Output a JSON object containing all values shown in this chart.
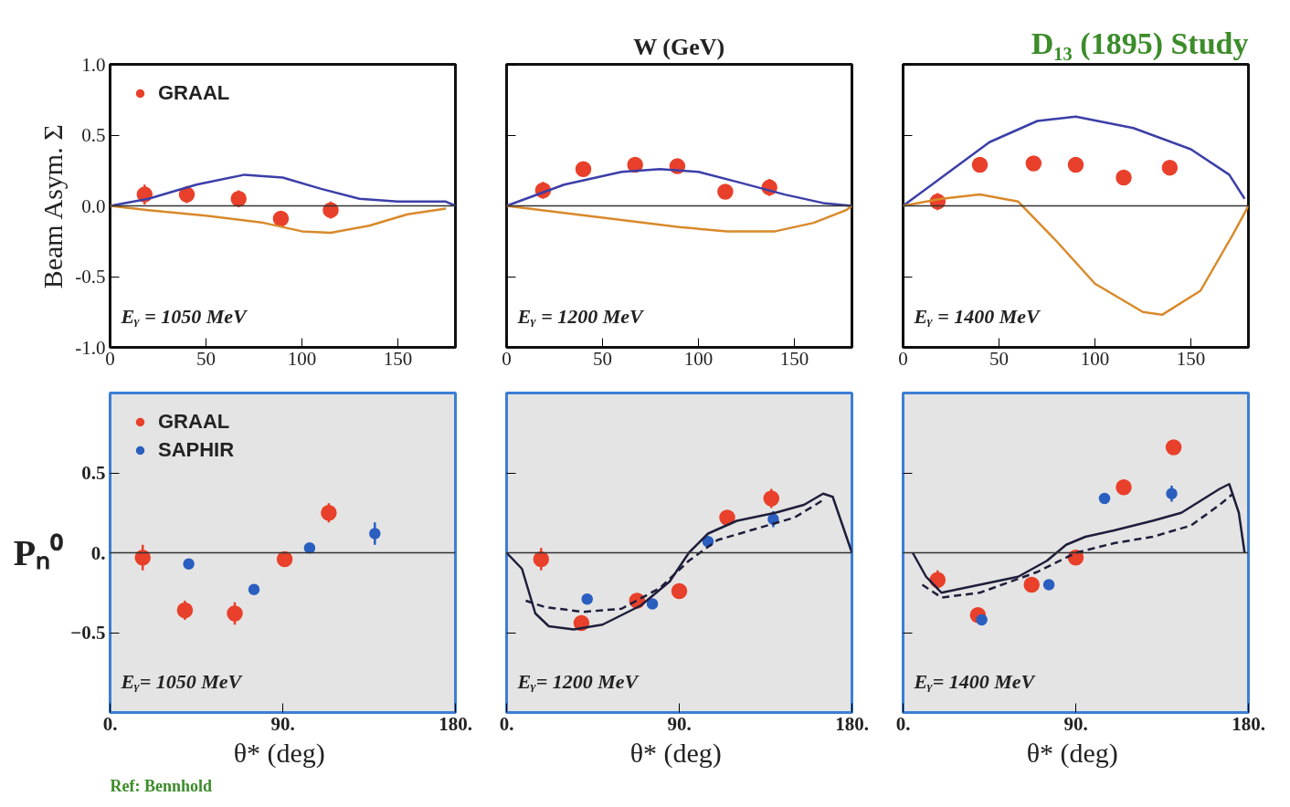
{
  "chart_data": [
    {
      "type": "scatter",
      "ylabel": "Beam Asym. Σ",
      "annotations": [
        "Eᵧ = 1050 MeV"
      ],
      "xlim": [
        0,
        180
      ],
      "ylim": [
        -1,
        1
      ],
      "xticks": [
        0,
        50,
        100,
        150
      ],
      "yticks": [
        {
          "value": 1,
          "label": "1.0"
        },
        {
          "value": 0.5,
          "label": "0.5"
        },
        {
          "value": 0,
          "label": "0.0"
        },
        {
          "value": -0.5,
          "label": "-0.5"
        },
        {
          "value": -1,
          "label": "-1.0"
        }
      ],
      "legend": "top left",
      "ref_lines": [
        {
          "axis": "y",
          "value": 0,
          "color": "#333333"
        }
      ],
      "series": [
        {
          "type": "line",
          "color": "#3b3fa8",
          "line_style": "solid",
          "x": [
            0,
            20,
            45,
            70,
            90,
            110,
            130,
            150,
            175,
            180
          ],
          "values": [
            0,
            0.05,
            0.15,
            0.22,
            0.2,
            0.12,
            0.05,
            0.03,
            0.03,
            0
          ]
        },
        {
          "type": "line",
          "color": "#d9892a",
          "line_style": "solid",
          "x": [
            0,
            20,
            50,
            80,
            100,
            115,
            135,
            155,
            175
          ],
          "values": [
            0,
            -0.03,
            -0.07,
            -0.12,
            -0.18,
            -0.19,
            -0.14,
            -0.06,
            -0.02
          ]
        },
        {
          "name": "GRAAL",
          "color": "#e8402a",
          "marker": "circle",
          "x": [
            18,
            40,
            67,
            89,
            115
          ],
          "values": [
            0.08,
            0.08,
            0.05,
            -0.09,
            -0.03
          ],
          "errors": [
            0.07,
            0.06,
            0.06,
            0.04,
            0.06
          ]
        }
      ]
    },
    {
      "type": "scatter",
      "x2label": "W (GeV)",
      "annotations": [
        "Eᵧ = 1200 MeV"
      ],
      "xlim": [
        0,
        180
      ],
      "ylim": [
        -1,
        1
      ],
      "xticks": [
        0,
        50,
        100,
        150
      ],
      "yticks": [
        {
          "value": 1,
          "label": null
        },
        {
          "value": 0.5,
          "label": null
        },
        {
          "value": 0,
          "label": null
        },
        {
          "value": -0.5,
          "label": null
        },
        {
          "value": -1,
          "label": null
        }
      ],
      "tick_labels": "x",
      "ref_lines": [
        {
          "axis": "y",
          "value": 0,
          "color": "#333333"
        }
      ],
      "series": [
        {
          "type": "line",
          "color": "#3b3fa8",
          "line_style": "solid",
          "x": [
            0,
            10,
            30,
            60,
            80,
            100,
            120,
            145,
            165,
            180
          ],
          "values": [
            0,
            0.05,
            0.15,
            0.24,
            0.26,
            0.24,
            0.17,
            0.08,
            0.02,
            0
          ]
        },
        {
          "type": "line",
          "color": "#d9892a",
          "line_style": "solid",
          "x": [
            0,
            30,
            60,
            90,
            115,
            140,
            160,
            177,
            180
          ],
          "values": [
            0,
            -0.05,
            -0.1,
            -0.15,
            -0.18,
            -0.18,
            -0.12,
            -0.03,
            0
          ]
        },
        {
          "color": "#e8402a",
          "marker": "circle",
          "x": [
            19,
            40,
            67,
            89,
            114,
            137
          ],
          "values": [
            0.11,
            0.26,
            0.29,
            0.28,
            0.1,
            0.13
          ],
          "errors": [
            0.06,
            null,
            null,
            null,
            null,
            0.06
          ]
        }
      ]
    },
    {
      "type": "scatter",
      "title": "D₁₃ (1895) Study",
      "annotations": [
        "Eᵧ = 1400 MeV"
      ],
      "xlim": [
        0,
        180
      ],
      "ylim": [
        -1,
        1
      ],
      "xticks": [
        0,
        50,
        100,
        150
      ],
      "yticks": [
        {
          "value": 1,
          "label": null
        },
        {
          "value": 0.5,
          "label": null
        },
        {
          "value": 0,
          "label": null
        },
        {
          "value": -0.5,
          "label": null
        },
        {
          "value": -1,
          "label": null
        }
      ],
      "tick_labels": "x",
      "ref_lines": [
        {
          "axis": "y",
          "value": 0,
          "color": "#333333"
        }
      ],
      "series": [
        {
          "type": "line",
          "color": "#3b3fa8",
          "line_style": "solid",
          "x": [
            0,
            20,
            45,
            70,
            90,
            120,
            150,
            170,
            178
          ],
          "values": [
            0,
            0.2,
            0.45,
            0.6,
            0.63,
            0.55,
            0.4,
            0.22,
            0.05
          ]
        },
        {
          "type": "line",
          "color": "#d9892a",
          "line_style": "solid",
          "x": [
            0,
            20,
            40,
            60,
            80,
            100,
            125,
            135,
            155,
            172,
            180
          ],
          "values": [
            0,
            0.05,
            0.08,
            0.03,
            -0.25,
            -0.55,
            -0.75,
            -0.77,
            -0.6,
            -0.2,
            0
          ]
        },
        {
          "color": "#e8402a",
          "marker": "circle",
          "x": [
            18,
            40,
            68,
            90,
            115,
            139
          ],
          "values": [
            0.03,
            0.29,
            0.3,
            0.29,
            0.2,
            0.27
          ],
          "errors": [
            0.06,
            null,
            null,
            null,
            null,
            null
          ]
        }
      ]
    },
    {
      "type": "scatter",
      "ylabel": "Pₙ⁰",
      "xlabel": "θ*  (deg)",
      "annotations": [
        "Eᵧ= 1050 MeV",
        "Ref: Bennhold"
      ],
      "xlim": [
        0,
        180
      ],
      "ylim": [
        -1,
        1
      ],
      "xticks": [
        {
          "value": 0,
          "label": "0."
        },
        {
          "value": 90,
          "label": "90."
        },
        {
          "value": 180,
          "label": "180."
        }
      ],
      "yticks": [
        {
          "value": 0.5,
          "label": "0.5"
        },
        {
          "value": 0,
          "label": "0."
        },
        {
          "value": -0.5,
          "label": "−0.5"
        }
      ],
      "legend": "top left",
      "ref_lines": [
        {
          "axis": "y",
          "value": 0,
          "color": "#333333"
        }
      ],
      "series": [
        {
          "name": "GRAAL",
          "color": "#e8402a",
          "marker": "circle",
          "x": [
            17,
            39,
            65,
            91,
            114
          ],
          "values": [
            -0.03,
            -0.36,
            -0.38,
            -0.04,
            0.25
          ],
          "errors": [
            0.08,
            0.06,
            0.07,
            0.04,
            0.06
          ]
        },
        {
          "name": "SAPHIR",
          "color": "#2a5fc0",
          "marker": "circle",
          "x": [
            41,
            75,
            104,
            138
          ],
          "values": [
            -0.07,
            -0.23,
            0.03,
            0.12
          ],
          "errors": [
            null,
            null,
            null,
            0.07
          ]
        }
      ]
    },
    {
      "type": "scatter",
      "xlabel": "θ*  (deg)",
      "annotations": [
        "Eᵧ= 1200 MeV"
      ],
      "xlim": [
        0,
        180
      ],
      "ylim": [
        -1,
        1
      ],
      "xticks": [
        {
          "value": 0,
          "label": "0."
        },
        {
          "value": 90,
          "label": "90."
        },
        {
          "value": 180,
          "label": "180."
        }
      ],
      "yticks": [
        {
          "value": 0.5,
          "label": null
        },
        {
          "value": 0,
          "label": null
        },
        {
          "value": -0.5,
          "label": null
        }
      ],
      "tick_labels": "x",
      "ref_lines": [
        {
          "axis": "y",
          "value": 0,
          "color": "#333333"
        }
      ],
      "series": [
        {
          "type": "line",
          "color": "#1e1e3c",
          "line_style": "solid",
          "x": [
            0,
            8,
            15,
            22,
            35,
            50,
            70,
            85,
            95,
            105,
            120,
            140,
            155,
            165,
            170,
            180
          ],
          "values": [
            0,
            -0.1,
            -0.38,
            -0.46,
            -0.48,
            -0.45,
            -0.33,
            -0.18,
            0,
            0.12,
            0.2,
            0.25,
            0.3,
            0.37,
            0.35,
            0
          ]
        },
        {
          "type": "line",
          "color": "#1e1e3c",
          "line_style": "dashed",
          "x": [
            10,
            20,
            40,
            60,
            80,
            95,
            110,
            130,
            150,
            165
          ],
          "values": [
            -0.3,
            -0.34,
            -0.37,
            -0.35,
            -0.22,
            -0.05,
            0.08,
            0.15,
            0.22,
            0.33
          ]
        },
        {
          "color": "#e8402a",
          "marker": "circle",
          "x": [
            18,
            39,
            68,
            90,
            115,
            138
          ],
          "values": [
            -0.04,
            -0.44,
            -0.3,
            -0.24,
            0.22,
            0.34
          ],
          "errors": [
            0.07,
            null,
            null,
            null,
            null,
            0.06
          ]
        },
        {
          "color": "#2a5fc0",
          "marker": "circle",
          "x": [
            42,
            76,
            105,
            139
          ],
          "values": [
            -0.29,
            -0.32,
            0.07,
            0.21
          ],
          "errors": [
            null,
            null,
            null,
            0.05
          ]
        }
      ]
    },
    {
      "type": "scatter",
      "xlabel": "θ*  (deg)",
      "annotations": [
        "Eᵧ= 1400 MeV"
      ],
      "xlim": [
        0,
        180
      ],
      "ylim": [
        -1,
        1
      ],
      "xticks": [
        {
          "value": 0,
          "label": "0."
        },
        {
          "value": 90,
          "label": "90."
        },
        {
          "value": 180,
          "label": "180."
        }
      ],
      "yticks": [
        {
          "value": 0.5,
          "label": null
        },
        {
          "value": 0,
          "label": null
        },
        {
          "value": -0.5,
          "label": null
        }
      ],
      "tick_labels": "x",
      "ref_lines": [
        {
          "axis": "y",
          "value": 0,
          "color": "#333333"
        }
      ],
      "series": [
        {
          "type": "line",
          "color": "#1e1e3c",
          "line_style": "solid",
          "x": [
            5,
            12,
            20,
            40,
            60,
            75,
            85,
            95,
            110,
            130,
            145,
            165,
            170,
            175,
            178
          ],
          "values": [
            0,
            -0.15,
            -0.25,
            -0.2,
            -0.15,
            -0.05,
            0.05,
            0.1,
            0.14,
            0.2,
            0.25,
            0.4,
            0.43,
            0.25,
            0
          ]
        },
        {
          "type": "line",
          "color": "#1e1e3c",
          "line_style": "dashed",
          "x": [
            10,
            20,
            40,
            70,
            90,
            110,
            130,
            150,
            165,
            172
          ],
          "values": [
            -0.2,
            -0.28,
            -0.25,
            -0.12,
            0,
            0.06,
            0.1,
            0.17,
            0.3,
            0.37
          ]
        },
        {
          "color": "#e8402a",
          "marker": "circle",
          "x": [
            18,
            39,
            67,
            90,
            115,
            141
          ],
          "values": [
            -0.17,
            -0.39,
            -0.2,
            -0.03,
            0.41,
            0.66
          ],
          "errors": [
            0.06,
            null,
            null,
            null,
            null,
            0.04
          ]
        },
        {
          "color": "#2a5fc0",
          "marker": "circle",
          "x": [
            41,
            76,
            105,
            140
          ],
          "values": [
            -0.42,
            -0.2,
            0.34,
            0.37
          ],
          "errors": [
            null,
            null,
            null,
            0.05
          ]
        }
      ]
    }
  ]
}
